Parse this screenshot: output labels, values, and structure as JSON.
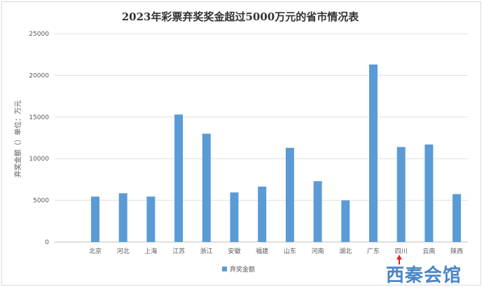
{
  "chart_data": {
    "type": "bar",
    "title": "2023年彩票弃奖奖金超过5000万元的省市情况表",
    "ylabel": "弃奖金额（）单位：万元",
    "xlabel": "",
    "ylim": [
      0,
      25000
    ],
    "yticks": [
      0,
      5000,
      10000,
      15000,
      20000,
      25000
    ],
    "grid": true,
    "legend_position": "bottom",
    "categories": [
      "北京",
      "河北",
      "上海",
      "江苏",
      "浙江",
      "安徽",
      "福建",
      "山东",
      "河南",
      "湖北",
      "广东",
      "四川",
      "云南",
      "陕西"
    ],
    "series": [
      {
        "name": "弃奖金额",
        "color": "#5b9bd5",
        "values": [
          5450,
          5850,
          5450,
          15300,
          13000,
          5950,
          6650,
          11300,
          7300,
          5000,
          21300,
          11400,
          11700,
          5750
        ]
      }
    ]
  },
  "watermark": {
    "text": "西秦会馆",
    "color": "#4a86c5",
    "arrow_color": "#d9232b"
  }
}
